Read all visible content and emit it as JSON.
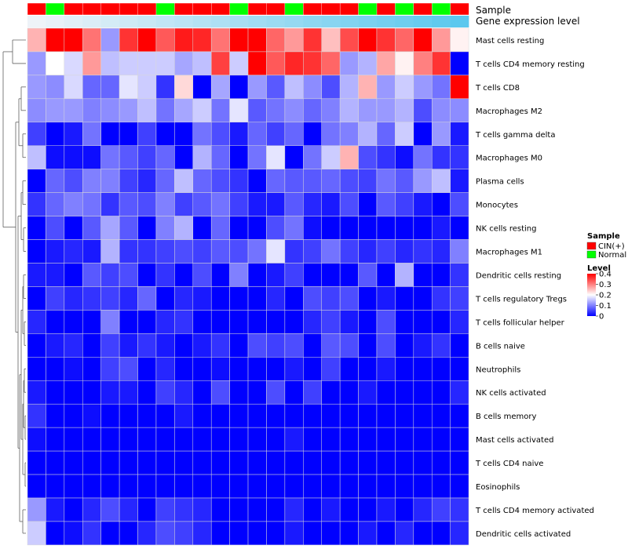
{
  "chart_data": {
    "type": "heatmap",
    "annotation_rows": [
      "Sample",
      "Gene expression level"
    ],
    "sample_groups": [
      "CIN",
      "Normal",
      "CIN",
      "CIN",
      "CIN",
      "CIN",
      "CIN",
      "Normal",
      "CIN",
      "CIN",
      "CIN",
      "Normal",
      "CIN",
      "CIN",
      "Normal",
      "CIN",
      "CIN",
      "CIN",
      "Normal",
      "CIN",
      "Normal",
      "CIN",
      "Normal",
      "CIN"
    ],
    "row_labels": [
      "Mast cells resting",
      "T cells CD4 memory resting",
      "T cells CD8",
      "Macrophages M2",
      "T cells gamma delta",
      "Macrophages M0",
      "Plasma cells",
      "Monocytes",
      "NK cells resting",
      "Macrophages M1",
      "Dendritic cells resting",
      "T cells regulatory  Tregs",
      "T cells follicular helper",
      "B cells naive",
      "Neutrophils",
      "NK cells activated",
      "B cells memory",
      "Mast cells activated",
      "T cells CD4 naive",
      "Eosinophils",
      "T cells CD4 memory activated",
      "Dendritic cells activated"
    ],
    "values": [
      [
        0.26,
        0.4,
        0.4,
        0.31,
        0.12,
        0.36,
        0.4,
        0.33,
        0.38,
        0.37,
        0.31,
        0.4,
        0.4,
        0.32,
        0.28,
        0.36,
        0.25,
        0.34,
        0.4,
        0.36,
        0.32,
        0.4,
        0.28,
        0.21
      ],
      [
        0.12,
        0.2,
        0.17,
        0.28,
        0.15,
        0.16,
        0.16,
        0.16,
        0.13,
        0.15,
        0.35,
        0.16,
        0.4,
        0.33,
        0.37,
        0.36,
        0.32,
        0.12,
        0.14,
        0.27,
        0.21,
        0.3,
        0.36,
        0.0
      ],
      [
        0.12,
        0.11,
        0.17,
        0.08,
        0.08,
        0.18,
        0.16,
        0.04,
        0.23,
        0.0,
        0.13,
        0.0,
        0.12,
        0.07,
        0.15,
        0.11,
        0.06,
        0.14,
        0.26,
        0.12,
        0.16,
        0.12,
        0.09,
        0.4
      ],
      [
        0.11,
        0.12,
        0.12,
        0.1,
        0.11,
        0.12,
        0.15,
        0.09,
        0.13,
        0.16,
        0.09,
        0.18,
        0.07,
        0.09,
        0.11,
        0.08,
        0.1,
        0.14,
        0.12,
        0.12,
        0.14,
        0.06,
        0.11,
        0.11
      ],
      [
        0.05,
        0.0,
        0.02,
        0.09,
        0.0,
        0.0,
        0.05,
        0.0,
        0.0,
        0.09,
        0.06,
        0.02,
        0.08,
        0.05,
        0.08,
        0.0,
        0.09,
        0.1,
        0.14,
        0.08,
        0.16,
        0.0,
        0.12,
        0.02
      ],
      [
        0.15,
        0.01,
        0.01,
        0.01,
        0.09,
        0.07,
        0.05,
        0.08,
        0.0,
        0.14,
        0.08,
        0.0,
        0.09,
        0.18,
        0.0,
        0.09,
        0.16,
        0.26,
        0.06,
        0.04,
        0.01,
        0.09,
        0.04,
        0.04
      ],
      [
        0.0,
        0.08,
        0.06,
        0.1,
        0.1,
        0.05,
        0.03,
        0.08,
        0.15,
        0.08,
        0.06,
        0.04,
        0.0,
        0.08,
        0.07,
        0.07,
        0.08,
        0.06,
        0.05,
        0.09,
        0.07,
        0.12,
        0.15,
        0.02
      ],
      [
        0.04,
        0.08,
        0.1,
        0.09,
        0.04,
        0.07,
        0.06,
        0.1,
        0.05,
        0.07,
        0.09,
        0.05,
        0.02,
        0.02,
        0.07,
        0.03,
        0.02,
        0.06,
        0.0,
        0.07,
        0.05,
        0.02,
        0.0,
        0.06
      ],
      [
        0.0,
        0.06,
        0.0,
        0.07,
        0.13,
        0.07,
        0.0,
        0.1,
        0.14,
        0.0,
        0.08,
        0.0,
        0.0,
        0.06,
        0.09,
        0.01,
        0.0,
        0.0,
        0.0,
        0.0,
        0.0,
        0.0,
        0.02,
        0.0
      ],
      [
        0.0,
        0.02,
        0.03,
        0.02,
        0.14,
        0.04,
        0.04,
        0.05,
        0.06,
        0.05,
        0.07,
        0.06,
        0.09,
        0.18,
        0.04,
        0.05,
        0.09,
        0.05,
        0.03,
        0.05,
        0.03,
        0.04,
        0.03,
        0.1
      ],
      [
        0.02,
        0.02,
        0.0,
        0.07,
        0.05,
        0.06,
        0.0,
        0.04,
        0.0,
        0.06,
        0.0,
        0.1,
        0.0,
        0.02,
        0.05,
        0.0,
        0.0,
        0.0,
        0.07,
        0.0,
        0.14,
        0.0,
        0.0,
        0.04
      ],
      [
        0.0,
        0.05,
        0.03,
        0.04,
        0.05,
        0.03,
        0.08,
        0.0,
        0.03,
        0.02,
        0.0,
        0.0,
        0.0,
        0.03,
        0.0,
        0.06,
        0.05,
        0.06,
        0.0,
        0.02,
        0.0,
        0.0,
        0.04,
        0.05
      ],
      [
        0.03,
        0.0,
        0.0,
        0.0,
        0.1,
        0.0,
        0.0,
        0.03,
        0.04,
        0.0,
        0.0,
        0.0,
        0.0,
        0.0,
        0.0,
        0.03,
        0.05,
        0.02,
        0.0,
        0.06,
        0.0,
        0.0,
        0.0,
        0.03
      ],
      [
        0.0,
        0.02,
        0.03,
        0.0,
        0.05,
        0.02,
        0.04,
        0.02,
        0.0,
        0.02,
        0.04,
        0.0,
        0.06,
        0.05,
        0.06,
        0.0,
        0.07,
        0.06,
        0.0,
        0.06,
        0.0,
        0.02,
        0.04,
        0.0
      ],
      [
        0.0,
        0.0,
        0.01,
        0.0,
        0.05,
        0.06,
        0.0,
        0.03,
        0.0,
        0.0,
        0.01,
        0.0,
        0.0,
        0.0,
        0.02,
        0.0,
        0.05,
        0.0,
        0.0,
        0.02,
        0.0,
        0.0,
        0.0,
        0.0
      ],
      [
        0.02,
        0.0,
        0.0,
        0.0,
        0.02,
        0.02,
        0.0,
        0.05,
        0.03,
        0.0,
        0.06,
        0.0,
        0.0,
        0.06,
        0.0,
        0.05,
        0.0,
        0.0,
        0.02,
        0.0,
        0.0,
        0.0,
        0.0,
        0.03
      ],
      [
        0.04,
        0.0,
        0.0,
        0.01,
        0.0,
        0.0,
        0.0,
        0.0,
        0.02,
        0.0,
        0.0,
        0.0,
        0.0,
        0.0,
        0.0,
        0.0,
        0.0,
        0.0,
        0.0,
        0.0,
        0.0,
        0.0,
        0.0,
        0.0
      ],
      [
        0.01,
        0.0,
        0.0,
        0.0,
        0.0,
        0.0,
        0.0,
        0.0,
        0.0,
        0.0,
        0.0,
        0.0,
        0.0,
        0.0,
        0.02,
        0.0,
        0.0,
        0.0,
        0.0,
        0.0,
        0.0,
        0.0,
        0.0,
        0.0
      ],
      [
        0.0,
        0.0,
        0.0,
        0.0,
        0.0,
        0.0,
        0.0,
        0.0,
        0.0,
        0.0,
        0.0,
        0.0,
        0.0,
        0.0,
        0.0,
        0.0,
        0.0,
        0.0,
        0.0,
        0.0,
        0.0,
        0.0,
        0.0,
        0.0
      ],
      [
        0.0,
        0.0,
        0.0,
        0.0,
        0.0,
        0.0,
        0.0,
        0.0,
        0.0,
        0.0,
        0.0,
        0.0,
        0.0,
        0.0,
        0.0,
        0.0,
        0.0,
        0.0,
        0.0,
        0.0,
        0.0,
        0.0,
        0.0,
        0.0
      ],
      [
        0.12,
        0.02,
        0.0,
        0.03,
        0.06,
        0.03,
        0.0,
        0.05,
        0.04,
        0.03,
        0.0,
        0.0,
        0.0,
        0.0,
        0.03,
        0.0,
        0.02,
        0.0,
        0.0,
        0.02,
        0.0,
        0.03,
        0.05,
        0.04
      ],
      [
        0.16,
        0.0,
        0.01,
        0.04,
        0.0,
        0.0,
        0.03,
        0.06,
        0.05,
        0.03,
        0.0,
        0.0,
        0.0,
        0.0,
        0.02,
        0.0,
        0.0,
        0.0,
        0.02,
        0.0,
        0.03,
        0.0,
        0.0,
        0.03
      ]
    ],
    "color_scale": {
      "min": 0,
      "mid": 0.2,
      "max": 0.4,
      "low_color": "#0000ff",
      "mid_color": "#ffffff",
      "high_color": "#ff0000"
    },
    "legend": {
      "sample_title": "Sample",
      "sample_entries": [
        {
          "label": "CIN(+)",
          "color": "#ff0000"
        },
        {
          "label": "Normal",
          "color": "#00ff00"
        }
      ],
      "level_title": "Level",
      "level_ticks": [
        0.4,
        0.3,
        0.2,
        0.1,
        0
      ],
      "level_tick_labels": [
        "0.4",
        "0.3",
        "0.2",
        "0.1",
        "0"
      ]
    },
    "group_colors": {
      "CIN": "#ff0000",
      "Normal": "#00ff00"
    },
    "expression_bar_gradient": [
      "#eef3f8",
      "#5bc8ee"
    ],
    "dendrogram_color": "#606060",
    "grid_color": "#d8d8d8"
  }
}
